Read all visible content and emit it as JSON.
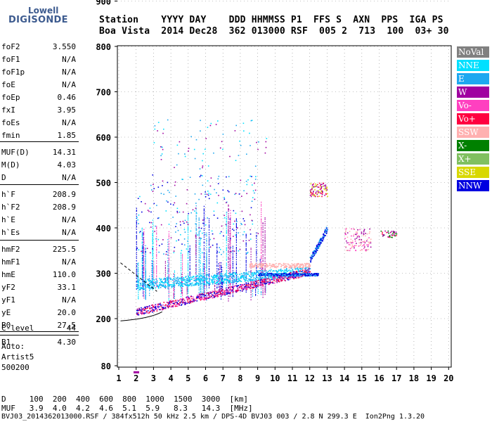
{
  "logo": {
    "line1": "Lowell",
    "line2": "DIGISONDE"
  },
  "header": {
    "line1": "Station    YYYY DAY    DDD HHMMSS P1  FFS S  AXN  PPS  IGA PS",
    "line2": "Boa Vista  2014 Dec28  362 013000 RSF  005 2  713  100  03+ 30"
  },
  "params": [
    {
      "k": "foF2",
      "v": "3.550"
    },
    {
      "k": "foF1",
      "v": "N/A"
    },
    {
      "k": "foF1p",
      "v": "N/A"
    },
    {
      "k": "foE",
      "v": "N/A"
    },
    {
      "k": "foEp",
      "v": "0.46"
    },
    {
      "k": "fxI",
      "v": "3.95"
    },
    {
      "k": "foEs",
      "v": "N/A"
    },
    {
      "k": "fmin",
      "v": "1.85"
    },
    {
      "k": "MUF(D)",
      "v": "14.31"
    },
    {
      "k": "M(D)",
      "v": "4.03"
    },
    {
      "k": "D",
      "v": "N/A"
    },
    {
      "k": "h`F",
      "v": "208.9"
    },
    {
      "k": "h`F2",
      "v": "208.9"
    },
    {
      "k": "h`E",
      "v": "N/A"
    },
    {
      "k": "h`Es",
      "v": "N/A"
    },
    {
      "k": "hmF2",
      "v": "225.5"
    },
    {
      "k": "hmF1",
      "v": "N/A"
    },
    {
      "k": "hmE",
      "v": "110.0"
    },
    {
      "k": "yF2",
      "v": "33.1"
    },
    {
      "k": "yF1",
      "v": "N/A"
    },
    {
      "k": "yE",
      "v": "20.0"
    },
    {
      "k": "B0",
      "v": "27.5"
    },
    {
      "k": "B1",
      "v": "4.30"
    },
    {
      "k": "C-level",
      "v": "44"
    }
  ],
  "autoscale": {
    "l1": "Auto:",
    "l2": "Artist5",
    "l3": "500200"
  },
  "legend": [
    {
      "label": "NoVal",
      "color": "#808080"
    },
    {
      "label": "NNE",
      "color": "#00e0ff"
    },
    {
      "label": "E",
      "color": "#1ea8f0"
    },
    {
      "label": "W",
      "color": "#a000a0"
    },
    {
      "label": "Vo-",
      "color": "#ff40c0"
    },
    {
      "label": "Vo+",
      "color": "#ff0040"
    },
    {
      "label": "SSW",
      "color": "#ffb0b0"
    },
    {
      "label": "X-",
      "color": "#008000"
    },
    {
      "label": "X+",
      "color": "#80c060"
    },
    {
      "label": "SSE",
      "color": "#d8d800"
    },
    {
      "label": "NNW",
      "color": "#0000e0"
    }
  ],
  "chart_data": {
    "type": "scatter",
    "x_ticks": [
      "1",
      "2",
      "3",
      "4",
      "5",
      "6",
      "7",
      "8",
      "9",
      "10",
      "11",
      "12",
      "13",
      "14",
      "15",
      "16",
      "17",
      "18",
      "19",
      "20"
    ],
    "y_ticks": [
      "80",
      "200",
      "300",
      "400",
      "500",
      "600",
      "700",
      "800",
      "900"
    ],
    "xlim": [
      1,
      20
    ],
    "ylim": [
      80,
      900
    ]
  },
  "bottom": {
    "line1": "D     100  200  400  600  800  1000  1500  3000  [km]",
    "line2": "MUF   3.9  4.0  4.2  4.6  5.1  5.9   8.3   14.3  [MHz]",
    "line3": "BVJ03_2014362013000.RSF / 384fx512h 50 kHz 2.5 km / DPS-4D BVJ03 003 / 2.8 N 299.3 E  Ion2Png 1.3.20"
  }
}
